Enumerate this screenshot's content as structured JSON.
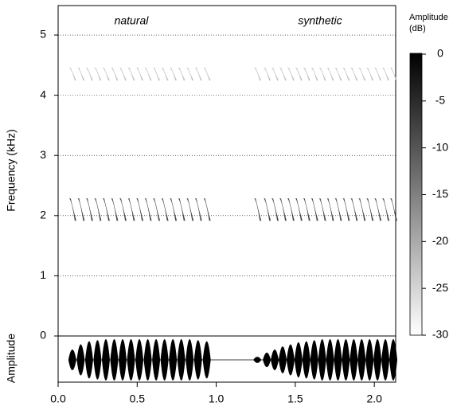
{
  "chart_data": {
    "type": "spectrogram",
    "annotations": [
      "natural",
      "synthetic"
    ],
    "ylabel": "Frequency (kHz)",
    "amplitude_label": "Amplitude",
    "colorbar_label": [
      "Amplitude",
      "(dB)"
    ],
    "xlim": [
      0,
      2.135
    ],
    "xticks": [
      {
        "value": 0,
        "label": "0.0"
      },
      0.5,
      {
        "value": 1,
        "label": "1.0"
      },
      1.5,
      {
        "value": 2,
        "label": "2.0"
      }
    ],
    "ylim": [
      0,
      5.49
    ],
    "yticks": [
      0,
      1,
      2,
      3,
      4,
      5
    ],
    "grid": true,
    "clim": [
      -30,
      0
    ],
    "cticks": [
      0,
      -5,
      -10,
      -15,
      -20,
      -25,
      -30
    ],
    "bands": [
      2.1,
      4.35
    ],
    "band_db": [
      -6,
      -22
    ],
    "series": [
      {
        "name": "natural",
        "x": [
          0.09,
          0.143,
          0.196,
          0.249,
          0.302,
          0.355,
          0.408,
          0.461,
          0.514,
          0.567,
          0.62,
          0.673,
          0.726,
          0.779,
          0.832,
          0.885,
          0.94
        ],
        "values": [
          0.5,
          0.75,
          0.9,
          0.95,
          1,
          1,
          1,
          1,
          1,
          1,
          1,
          1,
          1,
          1,
          1,
          0.95,
          0.9
        ]
      },
      {
        "name": "synthetic",
        "x": [
          1.26,
          1.32,
          1.37,
          1.42,
          1.47,
          1.52,
          1.57,
          1.62,
          1.67,
          1.72,
          1.77,
          1.82,
          1.87,
          1.92,
          1.97,
          2.02,
          2.07,
          2.12
        ],
        "values": [
          0.15,
          0.35,
          0.5,
          0.65,
          0.75,
          0.85,
          0.9,
          0.95,
          1,
          1,
          1,
          1,
          1,
          1,
          1,
          1,
          1,
          1
        ]
      }
    ]
  }
}
